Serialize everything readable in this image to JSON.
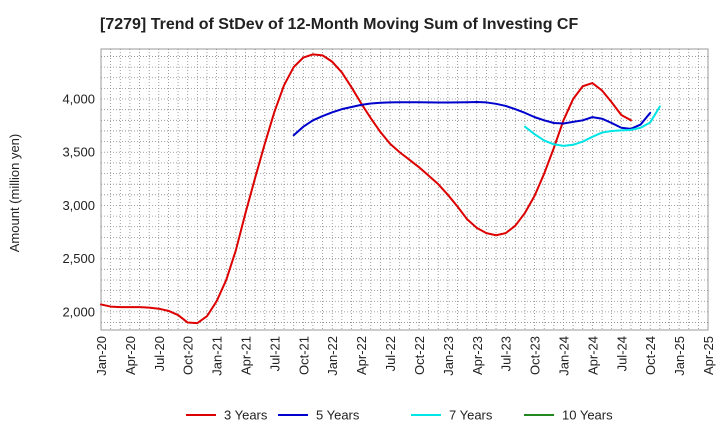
{
  "chart_data": {
    "type": "line",
    "title": "[7279]  Trend of StDev of 12-Month Moving Sum of Investing CF",
    "xlabel": "",
    "ylabel": "Amount (million yen)",
    "x_tick_labels": [
      "Jan-20",
      "Apr-20",
      "Jul-20",
      "Oct-20",
      "Jan-21",
      "Apr-21",
      "Jul-21",
      "Oct-21",
      "Jan-22",
      "Apr-22",
      "Jul-22",
      "Oct-22",
      "Jan-23",
      "Apr-23",
      "Jul-23",
      "Oct-23",
      "Jan-24",
      "Apr-24",
      "Jul-24",
      "Oct-24",
      "Jan-25",
      "Apr-25"
    ],
    "y_ticks": [
      "2,000",
      "2,500",
      "3,000",
      "3,500",
      "4,000"
    ],
    "y_tick_values": [
      2000,
      2500,
      3000,
      3500,
      4000
    ],
    "ylim": [
      1830,
      4470
    ],
    "xlim": [
      "2020-01",
      "2025-04"
    ],
    "grid": true,
    "legend_position": "bottom",
    "series": [
      {
        "name": "3 Years",
        "color": "#dd0000",
        "points": [
          [
            "2020-01",
            2070
          ],
          [
            "2020-02",
            2050
          ],
          [
            "2020-03",
            2045
          ],
          [
            "2020-04",
            2045
          ],
          [
            "2020-05",
            2045
          ],
          [
            "2020-06",
            2040
          ],
          [
            "2020-07",
            2030
          ],
          [
            "2020-08",
            2010
          ],
          [
            "2020-09",
            1970
          ],
          [
            "2020-10",
            1900
          ],
          [
            "2020-11",
            1895
          ],
          [
            "2020-12",
            1960
          ],
          [
            "2021-01",
            2100
          ],
          [
            "2021-02",
            2300
          ],
          [
            "2021-03",
            2580
          ],
          [
            "2021-04",
            2930
          ],
          [
            "2021-05",
            3260
          ],
          [
            "2021-06",
            3580
          ],
          [
            "2021-07",
            3880
          ],
          [
            "2021-08",
            4130
          ],
          [
            "2021-09",
            4300
          ],
          [
            "2021-10",
            4390
          ],
          [
            "2021-11",
            4420
          ],
          [
            "2021-12",
            4410
          ],
          [
            "2022-01",
            4350
          ],
          [
            "2022-02",
            4250
          ],
          [
            "2022-03",
            4110
          ],
          [
            "2022-04",
            3960
          ],
          [
            "2022-05",
            3820
          ],
          [
            "2022-06",
            3690
          ],
          [
            "2022-07",
            3580
          ],
          [
            "2022-08",
            3500
          ],
          [
            "2022-09",
            3430
          ],
          [
            "2022-10",
            3360
          ],
          [
            "2022-11",
            3280
          ],
          [
            "2022-12",
            3200
          ],
          [
            "2023-01",
            3100
          ],
          [
            "2023-02",
            2990
          ],
          [
            "2023-03",
            2870
          ],
          [
            "2023-04",
            2790
          ],
          [
            "2023-05",
            2740
          ],
          [
            "2023-06",
            2720
          ],
          [
            "2023-07",
            2740
          ],
          [
            "2023-08",
            2810
          ],
          [
            "2023-09",
            2930
          ],
          [
            "2023-10",
            3090
          ],
          [
            "2023-11",
            3300
          ],
          [
            "2023-12",
            3540
          ],
          [
            "2024-01",
            3800
          ],
          [
            "2024-02",
            4000
          ],
          [
            "2024-03",
            4120
          ],
          [
            "2024-04",
            4150
          ],
          [
            "2024-05",
            4080
          ],
          [
            "2024-06",
            3970
          ],
          [
            "2024-07",
            3850
          ],
          [
            "2024-08",
            3800
          ]
        ]
      },
      {
        "name": "5 Years",
        "color": "#0000cc",
        "points": [
          [
            "2021-09",
            3660
          ],
          [
            "2021-10",
            3740
          ],
          [
            "2021-11",
            3800
          ],
          [
            "2021-12",
            3840
          ],
          [
            "2022-01",
            3875
          ],
          [
            "2022-02",
            3905
          ],
          [
            "2022-03",
            3925
          ],
          [
            "2022-04",
            3945
          ],
          [
            "2022-05",
            3958
          ],
          [
            "2022-06",
            3965
          ],
          [
            "2022-07",
            3968
          ],
          [
            "2022-08",
            3970
          ],
          [
            "2022-09",
            3970
          ],
          [
            "2022-10",
            3970
          ],
          [
            "2022-11",
            3968
          ],
          [
            "2022-12",
            3967
          ],
          [
            "2023-01",
            3967
          ],
          [
            "2023-02",
            3968
          ],
          [
            "2023-03",
            3970
          ],
          [
            "2023-04",
            3972
          ],
          [
            "2023-05",
            3968
          ],
          [
            "2023-06",
            3955
          ],
          [
            "2023-07",
            3935
          ],
          [
            "2023-08",
            3905
          ],
          [
            "2023-09",
            3870
          ],
          [
            "2023-10",
            3830
          ],
          [
            "2023-11",
            3800
          ],
          [
            "2023-12",
            3775
          ],
          [
            "2024-01",
            3770
          ],
          [
            "2024-02",
            3785
          ],
          [
            "2024-03",
            3800
          ],
          [
            "2024-04",
            3830
          ],
          [
            "2024-05",
            3815
          ],
          [
            "2024-06",
            3775
          ],
          [
            "2024-07",
            3730
          ],
          [
            "2024-08",
            3720
          ],
          [
            "2024-09",
            3760
          ],
          [
            "2024-10",
            3870
          ]
        ]
      },
      {
        "name": "7 Years",
        "color": "#00e5e5",
        "points": [
          [
            "2023-09",
            3740
          ],
          [
            "2023-10",
            3670
          ],
          [
            "2023-11",
            3610
          ],
          [
            "2023-12",
            3575
          ],
          [
            "2024-01",
            3560
          ],
          [
            "2024-02",
            3570
          ],
          [
            "2024-03",
            3600
          ],
          [
            "2024-04",
            3645
          ],
          [
            "2024-05",
            3685
          ],
          [
            "2024-06",
            3700
          ],
          [
            "2024-07",
            3705
          ],
          [
            "2024-08",
            3710
          ],
          [
            "2024-09",
            3730
          ],
          [
            "2024-10",
            3780
          ],
          [
            "2024-11",
            3930
          ]
        ]
      },
      {
        "name": "10 Years",
        "color": "#228822",
        "points": []
      }
    ]
  }
}
